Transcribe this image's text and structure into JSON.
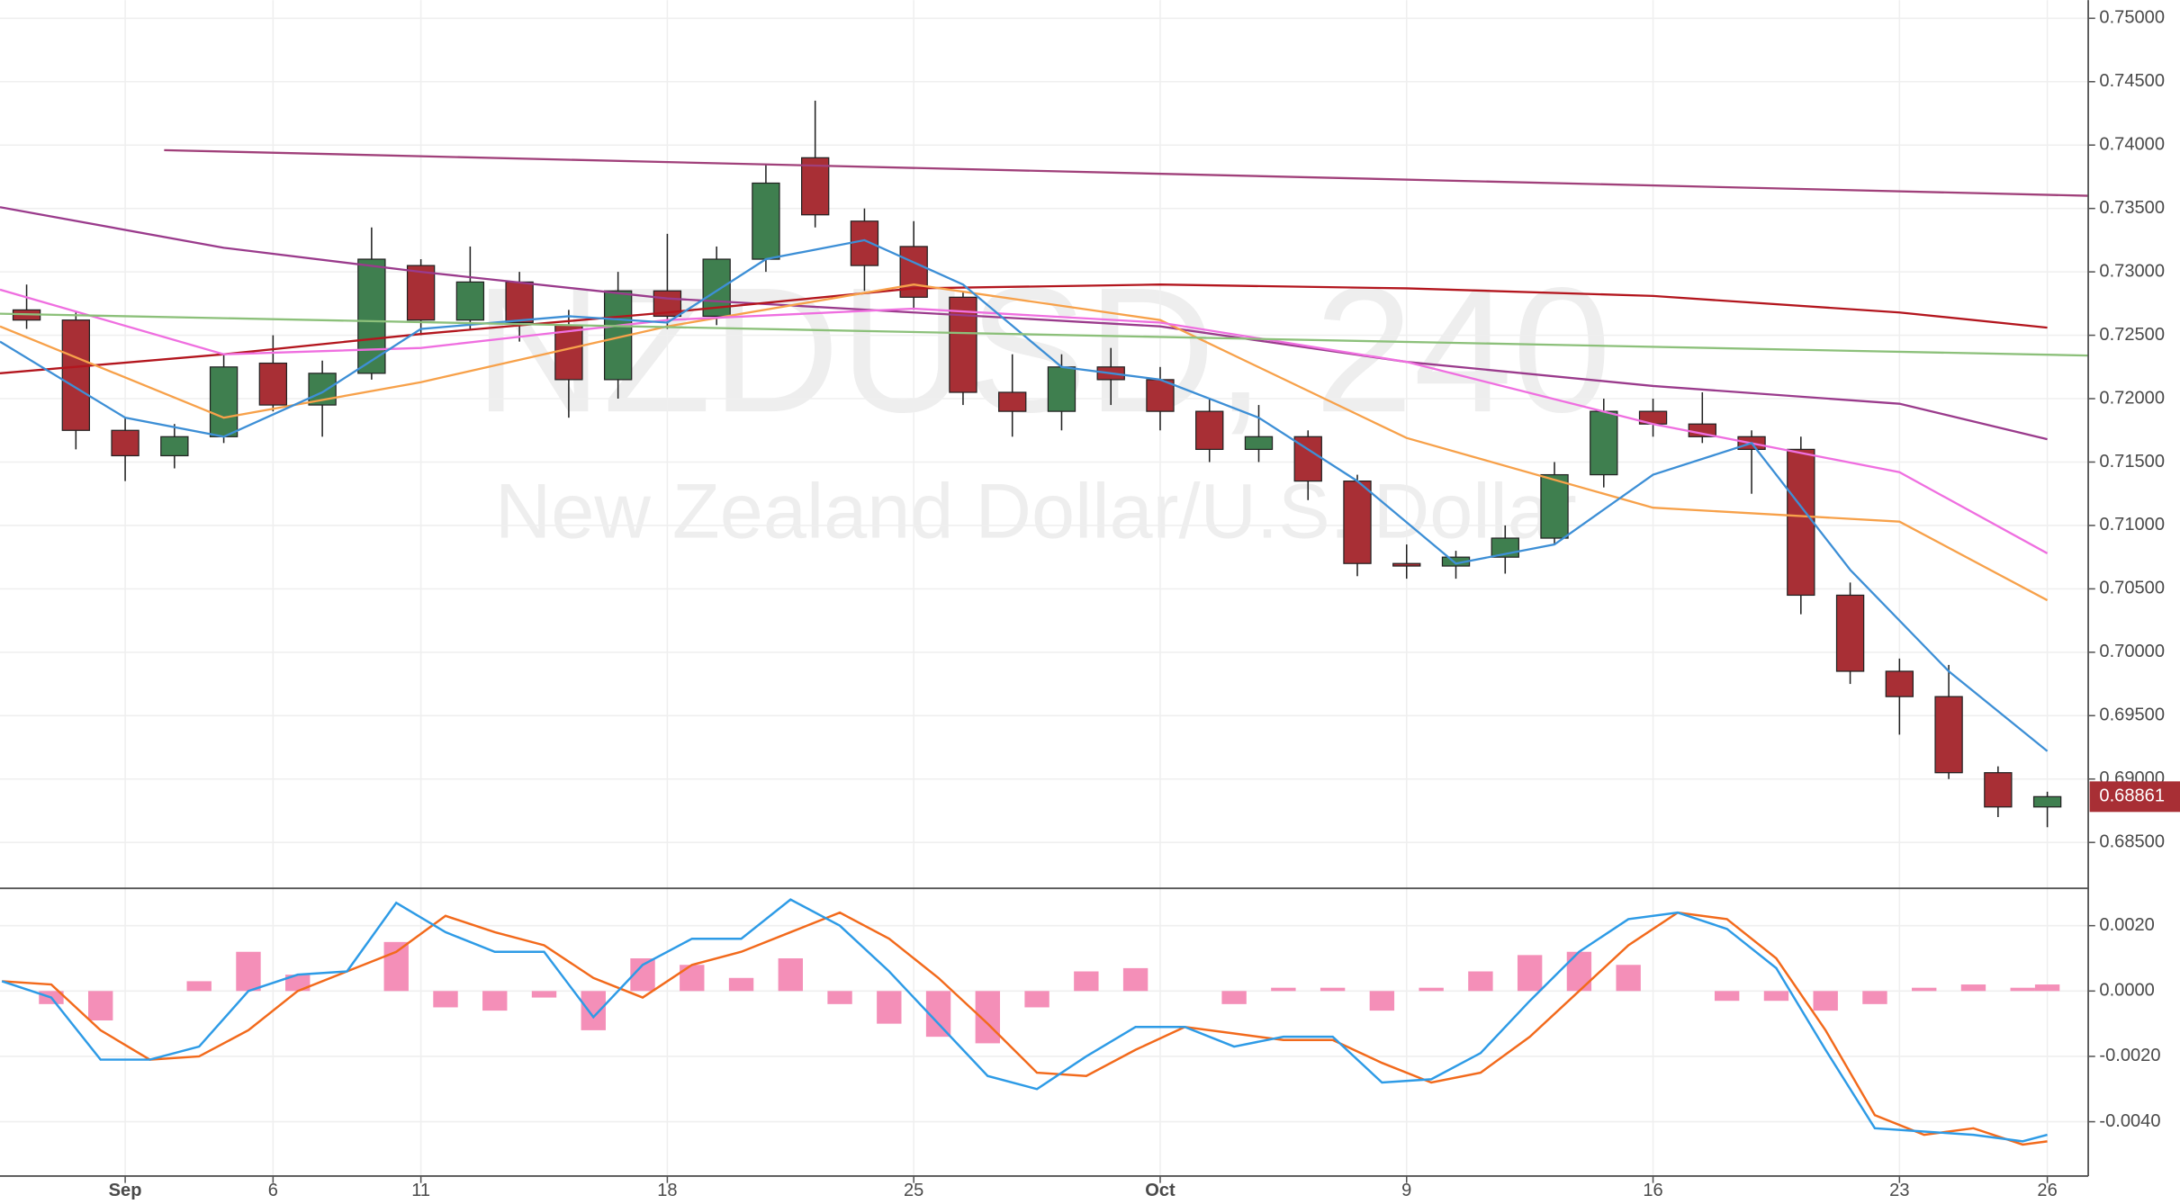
{
  "chart_data": [
    {
      "type": "candlestick",
      "symbol": "NZDUSD, 240",
      "description": "New Zealand Dollar/U.S. Dollar",
      "last_price": 0.68861,
      "up_color": "#3f7f4f",
      "down_color": "#a82f35",
      "grid": true,
      "xlim": [
        -2.54,
        39.83
      ],
      "xticks": [
        {
          "value": 0,
          "label": "Sep"
        },
        {
          "value": 3,
          "label": "6"
        },
        {
          "value": 6,
          "label": "11"
        },
        {
          "value": 11,
          "label": "18"
        },
        {
          "value": 16,
          "label": "25"
        },
        {
          "value": 21,
          "label": "Oct"
        },
        {
          "value": 26,
          "label": "9"
        },
        {
          "value": 31,
          "label": "16"
        },
        {
          "value": 36,
          "label": "23"
        },
        {
          "value": 39,
          "label": "26"
        }
      ],
      "ylim": [
        0.68149,
        0.75143
      ],
      "yticks": [
        {
          "value": 0.685,
          "label": "0.68500"
        },
        {
          "value": 0.69,
          "label": "0.69000"
        },
        {
          "value": 0.695,
          "label": "0.69500"
        },
        {
          "value": 0.7,
          "label": "0.70000"
        },
        {
          "value": 0.705,
          "label": "0.70500"
        },
        {
          "value": 0.71,
          "label": "0.71000"
        },
        {
          "value": 0.715,
          "label": "0.71500"
        },
        {
          "value": 0.72,
          "label": "0.72000"
        },
        {
          "value": 0.725,
          "label": "0.72500"
        },
        {
          "value": 0.73,
          "label": "0.73000"
        },
        {
          "value": 0.735,
          "label": "0.73500"
        },
        {
          "value": 0.74,
          "label": "0.74000"
        },
        {
          "value": 0.745,
          "label": "0.74500"
        },
        {
          "value": 0.75,
          "label": "0.75000"
        }
      ],
      "x": [
        -2,
        -1,
        0,
        1,
        2,
        3,
        4,
        5,
        6,
        7,
        8,
        9,
        10,
        11,
        12,
        13,
        14,
        15,
        16,
        17,
        18,
        19,
        20,
        21,
        22,
        23,
        24,
        25,
        26,
        27,
        28,
        29,
        30,
        31,
        32,
        33,
        34,
        35,
        36,
        37,
        38,
        39
      ],
      "open": [
        0.727,
        0.7262,
        0.7175,
        0.7155,
        0.717,
        0.7228,
        0.7195,
        0.722,
        0.7305,
        0.7262,
        0.7292,
        0.7258,
        0.7215,
        0.7285,
        0.7265,
        0.731,
        0.739,
        0.734,
        0.732,
        0.728,
        0.7205,
        0.719,
        0.7225,
        0.7215,
        0.719,
        0.716,
        0.717,
        0.7135,
        0.707,
        0.7068,
        0.7075,
        0.709,
        0.714,
        0.719,
        0.718,
        0.717,
        0.716,
        0.7045,
        0.6985,
        0.6965,
        0.6905,
        0.6878
      ],
      "high": [
        0.729,
        0.7268,
        0.7185,
        0.718,
        0.7235,
        0.725,
        0.723,
        0.7335,
        0.731,
        0.732,
        0.73,
        0.727,
        0.73,
        0.733,
        0.732,
        0.7385,
        0.7435,
        0.735,
        0.734,
        0.7285,
        0.7235,
        0.7235,
        0.724,
        0.7225,
        0.72,
        0.7195,
        0.7175,
        0.714,
        0.7085,
        0.708,
        0.71,
        0.715,
        0.72,
        0.72,
        0.7205,
        0.7175,
        0.717,
        0.7055,
        0.6995,
        0.699,
        0.691,
        0.689
      ],
      "low": [
        0.7255,
        0.716,
        0.7135,
        0.7145,
        0.7165,
        0.719,
        0.717,
        0.7215,
        0.725,
        0.7255,
        0.7245,
        0.7185,
        0.72,
        0.7255,
        0.7258,
        0.73,
        0.7335,
        0.7285,
        0.727,
        0.7195,
        0.717,
        0.7175,
        0.7195,
        0.7175,
        0.715,
        0.715,
        0.712,
        0.706,
        0.7058,
        0.7058,
        0.7062,
        0.7085,
        0.713,
        0.717,
        0.7165,
        0.7125,
        0.703,
        0.6975,
        0.6935,
        0.69,
        0.687,
        0.6862
      ],
      "close": [
        0.7262,
        0.7175,
        0.7155,
        0.717,
        0.7225,
        0.7195,
        0.722,
        0.731,
        0.7262,
        0.7292,
        0.726,
        0.7215,
        0.7285,
        0.7265,
        0.731,
        0.737,
        0.7345,
        0.7305,
        0.728,
        0.7205,
        0.719,
        0.7225,
        0.7215,
        0.719,
        0.716,
        0.717,
        0.7135,
        0.707,
        0.7068,
        0.7075,
        0.709,
        0.714,
        0.719,
        0.718,
        0.717,
        0.716,
        0.7045,
        0.6985,
        0.6965,
        0.6905,
        0.6878,
        0.68861
      ],
      "overlays": [
        {
          "color": "#9a3b8c",
          "x": [
            -2.54,
            2,
            6,
            11,
            16,
            21,
            26,
            31,
            36,
            39
          ],
          "values": [
            0.7351,
            0.7319,
            0.73,
            0.7279,
            0.7268,
            0.7257,
            0.7229,
            0.721,
            0.7196,
            0.7168
          ]
        },
        {
          "color": "#b3161e",
          "x": [
            -2.54,
            2,
            6,
            11,
            16,
            21,
            26,
            31,
            36,
            39
          ],
          "values": [
            0.722,
            0.7235,
            0.7251,
            0.7268,
            0.7287,
            0.729,
            0.7287,
            0.7281,
            0.7268,
            0.7256
          ]
        },
        {
          "color": "#f7a14a",
          "x": [
            -2.54,
            2,
            6,
            11,
            16,
            21,
            26,
            31,
            36,
            39
          ],
          "values": [
            0.7257,
            0.7185,
            0.7213,
            0.7257,
            0.729,
            0.7262,
            0.7169,
            0.7114,
            0.7103,
            0.7041
          ]
        },
        {
          "color": "#ef6fe0",
          "x": [
            -2.54,
            2,
            6,
            11,
            16,
            21,
            26,
            31,
            36,
            39
          ],
          "values": [
            0.7286,
            0.7235,
            0.724,
            0.7262,
            0.7271,
            0.726,
            0.7229,
            0.718,
            0.7142,
            0.7078
          ]
        },
        {
          "color": "#3d8fd6",
          "x": [
            -2.54,
            0,
            2,
            4,
            6,
            9,
            11,
            13,
            15,
            17,
            19,
            21,
            23,
            25,
            27,
            29,
            31,
            33,
            35,
            37,
            39
          ],
          "values": [
            0.7245,
            0.7185,
            0.717,
            0.7205,
            0.7255,
            0.7265,
            0.726,
            0.731,
            0.7325,
            0.729,
            0.7225,
            0.7215,
            0.7185,
            0.7135,
            0.707,
            0.7085,
            0.714,
            0.7165,
            0.7065,
            0.6985,
            0.6922
          ]
        },
        {
          "color": "#a0407a",
          "x": [
            0.79,
            39.83
          ],
          "values": [
            0.7396,
            0.736
          ]
        },
        {
          "color": "#8cc07a",
          "x": [
            -2.54,
            39.83
          ],
          "values": [
            0.7267,
            0.7234
          ]
        }
      ]
    },
    {
      "type": "macd",
      "ylim": [
        -0.00562,
        0.0031
      ],
      "yticks": [
        {
          "value": -0.004,
          "label": "-0.0040"
        },
        {
          "value": -0.002,
          "label": "-0.0020"
        },
        {
          "value": 0,
          "label": "0.0000"
        },
        {
          "value": 0.002,
          "label": "0.0020"
        }
      ],
      "x": [
        -2.5,
        -1.5,
        -0.5,
        0.5,
        1.5,
        2.5,
        3.5,
        4.5,
        5.5,
        6.5,
        7.5,
        8.5,
        9.5,
        10.5,
        11.5,
        12.5,
        13.5,
        14.5,
        15.5,
        16.5,
        17.5,
        18.5,
        19.5,
        20.5,
        21.5,
        22.5,
        23.5,
        24.5,
        25.5,
        26.5,
        27.5,
        28.5,
        29.5,
        30.5,
        31.5,
        32.5,
        33.5,
        34.5,
        35.5,
        36.5,
        37.5,
        38.5,
        39
      ],
      "macd_color": "#2e9be6",
      "signal_color": "#f26a1c",
      "histogram_color": "#f48fb8",
      "macd": [
        0.0003,
        -0.0002,
        -0.0021,
        -0.0021,
        -0.0017,
        0.0,
        0.0005,
        0.0006,
        0.0027,
        0.0018,
        0.0012,
        0.0012,
        -0.0008,
        0.0008,
        0.0016,
        0.0016,
        0.0028,
        0.002,
        0.0006,
        -0.001,
        -0.0026,
        -0.003,
        -0.002,
        -0.0011,
        -0.0011,
        -0.0017,
        -0.0014,
        -0.0014,
        -0.0028,
        -0.0027,
        -0.0019,
        -0.0003,
        0.0012,
        0.0022,
        0.0024,
        0.0019,
        0.0007,
        -0.0018,
        -0.0042,
        -0.0043,
        -0.0044,
        -0.0046,
        -0.0044
      ],
      "signal": [
        0.0003,
        0.0002,
        -0.0012,
        -0.0021,
        -0.002,
        -0.0012,
        0.0,
        0.0006,
        0.0012,
        0.0023,
        0.0018,
        0.0014,
        0.0004,
        -0.0002,
        0.0008,
        0.0012,
        0.0018,
        0.0024,
        0.0016,
        0.0004,
        -0.001,
        -0.0025,
        -0.0026,
        -0.0018,
        -0.0011,
        -0.0013,
        -0.0015,
        -0.0015,
        -0.0022,
        -0.0028,
        -0.0025,
        -0.0014,
        0.0,
        0.0014,
        0.0024,
        0.0022,
        0.001,
        -0.0012,
        -0.0038,
        -0.0044,
        -0.0042,
        -0.0047,
        -0.0046
      ],
      "histogram": [
        0,
        -0.0004,
        -0.0009,
        0,
        0.0003,
        0.0012,
        0.0005,
        0,
        0.0015,
        -0.0005,
        -0.0006,
        -0.0002,
        -0.0012,
        0.001,
        0.0008,
        0.0004,
        0.001,
        -0.0004,
        -0.001,
        -0.0014,
        -0.0016,
        -0.0005,
        0.0006,
        0.0007,
        0,
        -0.0004,
        0.0001,
        0.0001,
        -0.0006,
        0.0001,
        0.0006,
        0.0011,
        0.0012,
        0.0008,
        0,
        -0.0003,
        -0.0003,
        -0.0006,
        -0.0004,
        0.0001,
        0.0002,
        0.0001,
        0.0002
      ]
    }
  ]
}
